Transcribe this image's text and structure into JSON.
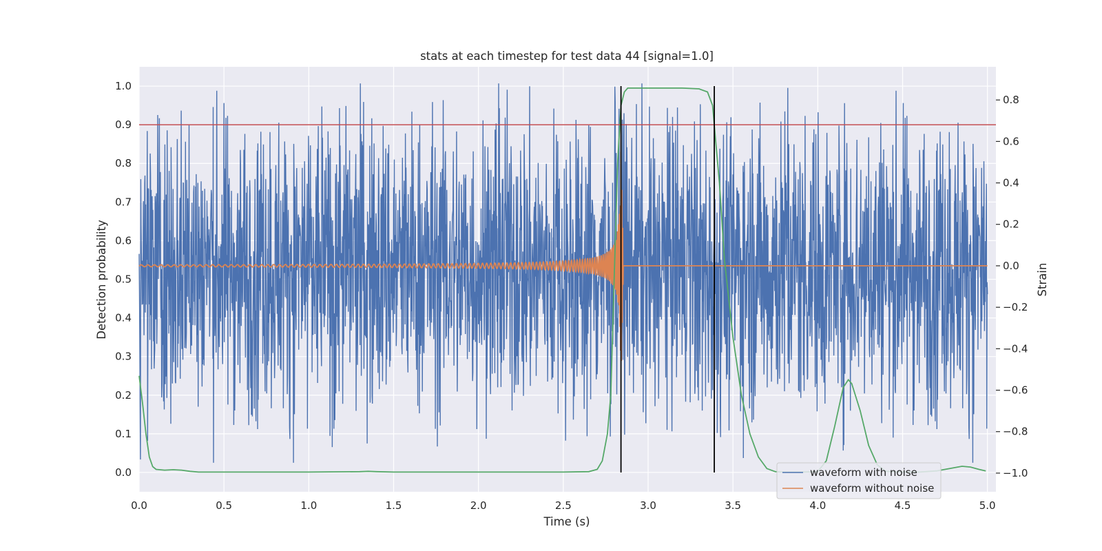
{
  "chart_data": {
    "type": "line",
    "title": "stats at each timestep for test data 44 [signal=1.0]",
    "xlabel": "Time (s)",
    "ylabel": "Detection probability",
    "y2label": "Strain",
    "xlim": [
      0.0,
      5.05
    ],
    "ylim": [
      -0.05,
      1.05
    ],
    "y2lim": [
      -1.09,
      0.96
    ],
    "xticks": [
      0.0,
      0.5,
      1.0,
      1.5,
      2.0,
      2.5,
      3.0,
      3.5,
      4.0,
      4.5,
      5.0
    ],
    "xtick_labels": [
      "0.0",
      "0.5",
      "1.0",
      "1.5",
      "2.0",
      "2.5",
      "3.0",
      "3.5",
      "4.0",
      "4.5",
      "5.0"
    ],
    "yticks": [
      0.0,
      0.1,
      0.2,
      0.3,
      0.4,
      0.5,
      0.6,
      0.7,
      0.8,
      0.9,
      1.0
    ],
    "ytick_labels": [
      "0.0",
      "0.1",
      "0.2",
      "0.3",
      "0.4",
      "0.5",
      "0.6",
      "0.7",
      "0.8",
      "0.9",
      "1.0"
    ],
    "y2ticks": [
      -1.0,
      -0.8,
      -0.6,
      -0.4,
      -0.2,
      0.0,
      0.2,
      0.4,
      0.6,
      0.8
    ],
    "y2tick_labels": [
      "−1.0",
      "−0.8",
      "−0.6",
      "−0.4",
      "−0.2",
      "0.0",
      "0.2",
      "0.4",
      "0.6",
      "0.8"
    ],
    "grid": true,
    "legend_position": "lower-right",
    "threshold": {
      "y": 0.9,
      "color": "#c44e52"
    },
    "vlines": {
      "x": [
        2.84,
        3.39
      ],
      "y_range": [
        0.0,
        1.0
      ],
      "color": "#000000"
    },
    "series": [
      {
        "name": "waveform with noise",
        "axis": "right",
        "color": "#4c72b0",
        "description_kind": "noisy strain, approx. symmetric about 0.0 with amplitude ~0.5 and spikes to ~0.9 / -0.95",
        "x_range": [
          0.0,
          5.0
        ],
        "peak_max": 0.88,
        "peak_min": -0.95
      },
      {
        "name": "waveform without noise",
        "axis": "right",
        "color": "#dd8452",
        "chirp": {
          "x_start": 0.0,
          "merger_x": 2.84,
          "amp_start": 0.015,
          "amp_peak": 0.55,
          "flat_after": 0.0,
          "x_end": 5.0
        }
      },
      {
        "axis": "left",
        "color": "#55a868",
        "x": [
          0.0,
          0.02,
          0.04,
          0.06,
          0.08,
          0.1,
          0.15,
          0.2,
          0.25,
          0.3,
          0.35,
          0.4,
          0.5,
          1.0,
          1.3,
          1.35,
          1.4,
          1.5,
          2.0,
          2.5,
          2.65,
          2.7,
          2.73,
          2.76,
          2.78,
          2.8,
          2.82,
          2.84,
          2.86,
          2.88,
          2.9,
          3.0,
          3.2,
          3.3,
          3.35,
          3.38,
          3.4,
          3.42,
          3.45,
          3.5,
          3.55,
          3.6,
          3.65,
          3.7,
          3.75,
          3.8,
          3.9,
          4.0,
          4.05,
          4.1,
          4.15,
          4.18,
          4.2,
          4.25,
          4.3,
          4.35,
          4.4,
          4.5,
          4.6,
          4.7,
          4.8,
          4.85,
          4.9,
          4.95,
          4.99
        ],
        "y": [
          0.25,
          0.18,
          0.1,
          0.04,
          0.015,
          0.008,
          0.006,
          0.007,
          0.006,
          0.003,
          0.001,
          0.001,
          0.001,
          0.001,
          0.002,
          0.003,
          0.002,
          0.001,
          0.001,
          0.001,
          0.002,
          0.008,
          0.03,
          0.1,
          0.2,
          0.5,
          0.8,
          0.95,
          0.985,
          0.995,
          0.995,
          0.995,
          0.995,
          0.993,
          0.985,
          0.95,
          0.85,
          0.75,
          0.55,
          0.35,
          0.2,
          0.1,
          0.04,
          0.01,
          0.002,
          0.001,
          0.001,
          0.002,
          0.03,
          0.12,
          0.22,
          0.24,
          0.23,
          0.16,
          0.07,
          0.02,
          0.003,
          0.001,
          0.001,
          0.004,
          0.012,
          0.016,
          0.014,
          0.008,
          0.004
        ]
      }
    ]
  }
}
